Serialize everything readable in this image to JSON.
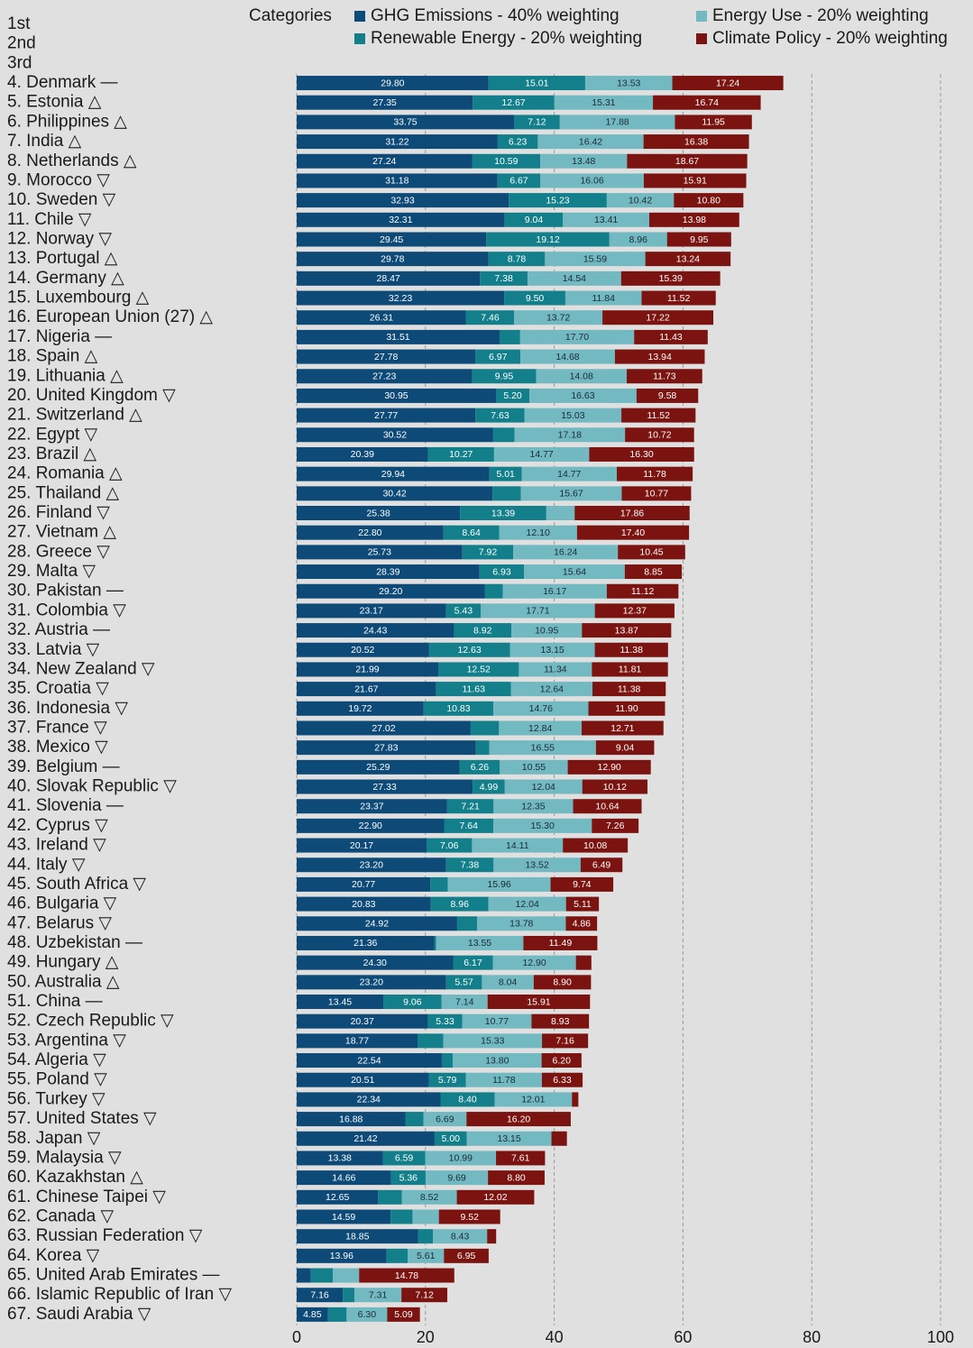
{
  "chart_data": {
    "type": "bar",
    "orientation": "horizontal",
    "stacked": true,
    "legend_title": "Categories",
    "categories": [
      "1st",
      "2nd",
      "3rd",
      "4. Denmark —",
      "5. Estonia △",
      "6. Philippines △",
      "7. India △",
      "8. Netherlands △",
      "9. Morocco ▽",
      "10. Sweden ▽",
      "11. Chile ▽",
      "12. Norway ▽",
      "13. Portugal △",
      "14. Germany △",
      "15. Luxembourg △",
      "16. European Union (27) △",
      "17. Nigeria —",
      "18. Spain △",
      "19. Lithuania △",
      "20. United Kingdom ▽",
      "21. Switzerland △",
      "22. Egypt ▽",
      "23. Brazil △",
      "24. Romania △",
      "25. Thailand △",
      "26. Finland ▽",
      "27. Vietnam △",
      "28. Greece ▽",
      "29. Malta ▽",
      "30. Pakistan —",
      "31. Colombia ▽",
      "32. Austria —",
      "33. Latvia ▽",
      "34. New Zealand ▽",
      "35. Croatia ▽",
      "36. Indonesia ▽",
      "37. France ▽",
      "38. Mexico ▽",
      "39. Belgium —",
      "40. Slovak Republic ▽",
      "41. Slovenia —",
      "42. Cyprus ▽",
      "43. Ireland ▽",
      "44. Italy ▽",
      "45. South Africa ▽",
      "46. Bulgaria ▽",
      "47. Belarus ▽",
      "48. Uzbekistan —",
      "49. Hungary △",
      "50. Australia △",
      "51. China —",
      "52. Czech Republic ▽",
      "53. Argentina ▽",
      "54. Algeria ▽",
      "55. Poland ▽",
      "56. Turkey ▽",
      "57. United States ▽",
      "58. Japan ▽",
      "59. Malaysia ▽",
      "60. Kazakhstan △",
      "61. Chinese Taipei ▽",
      "62. Canada ▽",
      "63. Russian Federation ▽",
      "64. Korea ▽",
      "65. United Arab Emirates —",
      "66. Islamic Republic of Iran ▽",
      "67. Saudi Arabia ▽"
    ],
    "series": [
      {
        "name": "GHG Emissions - 40% weighting",
        "color": "#0d4a78",
        "label_color": "#ffffff",
        "values": [
          null,
          null,
          null,
          29.8,
          27.35,
          33.75,
          31.22,
          27.24,
          31.18,
          32.93,
          32.31,
          29.45,
          29.78,
          28.47,
          32.23,
          26.31,
          31.51,
          27.78,
          27.23,
          30.95,
          27.77,
          30.52,
          20.39,
          29.94,
          30.42,
          25.38,
          22.8,
          25.73,
          28.39,
          29.2,
          23.17,
          24.43,
          20.52,
          21.99,
          21.67,
          19.72,
          27.02,
          27.83,
          25.29,
          27.33,
          23.37,
          22.9,
          20.17,
          23.2,
          20.77,
          20.83,
          24.92,
          21.36,
          24.3,
          23.2,
          13.45,
          20.37,
          18.77,
          22.54,
          20.51,
          22.34,
          16.88,
          21.42,
          13.38,
          14.66,
          12.65,
          14.59,
          18.85,
          13.96,
          2.2,
          7.16,
          4.85
        ],
        "value_labels": [
          null,
          null,
          null,
          "29.80",
          "27.35",
          "33.75",
          "31.22",
          "27.24",
          "31.18",
          "32.93",
          "32.31",
          "29.45",
          "29.78",
          "28.47",
          "32.23",
          "26.31",
          "31.51",
          "27.78",
          "27.23",
          "30.95",
          "27.77",
          "30.52",
          "20.39",
          "29.94",
          "30.42",
          "25.38",
          "22.80",
          "25.73",
          "28.39",
          "29.20",
          "23.17",
          "24.43",
          "20.52",
          "21.99",
          "21.67",
          "19.72",
          "27.02",
          "27.83",
          "25.29",
          "27.33",
          "23.37",
          "22.90",
          "20.17",
          "23.20",
          "20.77",
          "20.83",
          "24.92",
          "21.36",
          "24.30",
          "23.20",
          "13.45",
          "20.37",
          "18.77",
          "22.54",
          "20.51",
          "22.34",
          "16.88",
          "21.42",
          "13.38",
          "14.66",
          "12.65",
          "14.59",
          "18.85",
          "13.96",
          null,
          "7.16",
          "4.85"
        ]
      },
      {
        "name": "Renewable Energy - 20% weighting",
        "color": "#127f8a",
        "label_color": "#ffffff",
        "values": [
          null,
          null,
          null,
          15.01,
          12.67,
          7.12,
          6.23,
          10.59,
          6.67,
          15.23,
          9.04,
          19.12,
          8.78,
          7.38,
          9.5,
          7.46,
          3.2,
          6.97,
          9.95,
          5.2,
          7.63,
          3.3,
          10.27,
          5.01,
          4.4,
          13.39,
          8.64,
          7.92,
          6.93,
          2.8,
          5.43,
          8.92,
          12.63,
          12.52,
          11.63,
          10.83,
          4.4,
          2.1,
          6.26,
          4.99,
          7.21,
          7.64,
          7.06,
          7.38,
          2.7,
          8.96,
          3.1,
          0.3,
          6.17,
          5.57,
          9.06,
          5.33,
          4.0,
          1.7,
          5.79,
          8.4,
          2.8,
          5.0,
          6.59,
          5.36,
          3.7,
          3.4,
          2.3,
          3.3,
          3.4,
          1.8,
          2.9
        ],
        "value_labels": [
          null,
          null,
          null,
          "15.01",
          "12.67",
          "7.12",
          "6.23",
          "10.59",
          "6.67",
          "15.23",
          "9.04",
          "19.12",
          "8.78",
          "7.38",
          "9.50",
          "7.46",
          null,
          "6.97",
          "9.95",
          "5.20",
          "7.63",
          null,
          "10.27",
          "5.01",
          null,
          "13.39",
          "8.64",
          "7.92",
          "6.93",
          null,
          "5.43",
          "8.92",
          "12.63",
          "12.52",
          "11.63",
          "10.83",
          null,
          null,
          "6.26",
          "4.99",
          "7.21",
          "7.64",
          "7.06",
          "7.38",
          null,
          "8.96",
          null,
          null,
          "6.17",
          "5.57",
          "9.06",
          "5.33",
          null,
          null,
          "5.79",
          "8.40",
          null,
          "5.00",
          "6.59",
          "5.36",
          null,
          null,
          null,
          null,
          null,
          null,
          null
        ]
      },
      {
        "name": "Energy Use - 20% weighting",
        "color": "#72b9c2",
        "label_color": "#1c2b33",
        "values": [
          null,
          null,
          null,
          13.53,
          15.31,
          17.88,
          16.42,
          13.48,
          16.06,
          10.42,
          13.41,
          8.96,
          15.59,
          14.54,
          11.84,
          13.72,
          17.7,
          14.68,
          14.08,
          16.63,
          15.03,
          17.18,
          14.77,
          14.77,
          15.67,
          4.4,
          12.1,
          16.24,
          15.64,
          16.17,
          17.71,
          10.95,
          13.15,
          11.34,
          12.64,
          14.76,
          12.84,
          16.55,
          10.55,
          12.04,
          12.35,
          15.3,
          14.11,
          13.52,
          15.96,
          12.04,
          13.78,
          13.55,
          12.9,
          8.04,
          7.14,
          10.77,
          15.33,
          13.8,
          11.78,
          12.01,
          6.69,
          13.15,
          10.99,
          9.69,
          8.52,
          4.1,
          8.43,
          5.61,
          4.1,
          7.31,
          6.3
        ],
        "value_labels": [
          null,
          null,
          null,
          "13.53",
          "15.31",
          "17.88",
          "16.42",
          "13.48",
          "16.06",
          "10.42",
          "13.41",
          "8.96",
          "15.59",
          "14.54",
          "11.84",
          "13.72",
          "17.70",
          "14.68",
          "14.08",
          "16.63",
          "15.03",
          "17.18",
          "14.77",
          "14.77",
          "15.67",
          null,
          "12.10",
          "16.24",
          "15.64",
          "16.17",
          "17.71",
          "10.95",
          "13.15",
          "11.34",
          "12.64",
          "14.76",
          "12.84",
          "16.55",
          "10.55",
          "12.04",
          "12.35",
          "15.30",
          "14.11",
          "13.52",
          "15.96",
          "12.04",
          "13.78",
          "13.55",
          "12.90",
          "8.04",
          "7.14",
          "10.77",
          "15.33",
          "13.80",
          "11.78",
          "12.01",
          "6.69",
          "13.15",
          "10.99",
          "9.69",
          "8.52",
          null,
          "8.43",
          "5.61",
          null,
          "7.31",
          "6.30"
        ]
      },
      {
        "name": "Climate Policy - 20% weighting",
        "color": "#7b1410",
        "label_color": "#ffffff",
        "values": [
          null,
          null,
          null,
          17.24,
          16.74,
          11.95,
          16.38,
          18.67,
          15.91,
          10.8,
          13.98,
          9.95,
          13.24,
          15.39,
          11.52,
          17.22,
          11.43,
          13.94,
          11.73,
          9.58,
          11.52,
          10.72,
          16.3,
          11.78,
          10.77,
          17.86,
          17.4,
          10.45,
          8.85,
          11.12,
          12.37,
          13.87,
          11.38,
          11.81,
          11.38,
          11.9,
          12.71,
          9.04,
          12.9,
          10.12,
          10.64,
          7.26,
          10.08,
          6.49,
          9.74,
          5.11,
          4.86,
          11.49,
          2.4,
          8.9,
          15.91,
          8.93,
          7.16,
          6.2,
          6.33,
          1.0,
          16.2,
          2.4,
          7.61,
          8.8,
          12.02,
          9.52,
          1.4,
          6.95,
          14.78,
          7.12,
          5.09
        ],
        "value_labels": [
          null,
          null,
          null,
          "17.24",
          "16.74",
          "11.95",
          "16.38",
          "18.67",
          "15.91",
          "10.80",
          "13.98",
          "9.95",
          "13.24",
          "15.39",
          "11.52",
          "17.22",
          "11.43",
          "13.94",
          "11.73",
          "9.58",
          "11.52",
          "10.72",
          "16.30",
          "11.78",
          "10.77",
          "17.86",
          "17.40",
          "10.45",
          "8.85",
          "11.12",
          "12.37",
          "13.87",
          "11.38",
          "11.81",
          "11.38",
          "11.90",
          "12.71",
          "9.04",
          "12.90",
          "10.12",
          "10.64",
          "7.26",
          "10.08",
          "6.49",
          "9.74",
          "5.11",
          "4.86",
          "11.49",
          null,
          "8.90",
          "15.91",
          "8.93",
          "7.16",
          "6.20",
          "6.33",
          null,
          "16.20",
          null,
          "7.61",
          "8.80",
          "12.02",
          "9.52",
          null,
          "6.95",
          "14.78",
          "7.12",
          "5.09"
        ]
      }
    ],
    "xlim": [
      0,
      100
    ],
    "xticks": [
      0,
      20,
      40,
      60,
      80,
      100
    ],
    "grid": true
  }
}
